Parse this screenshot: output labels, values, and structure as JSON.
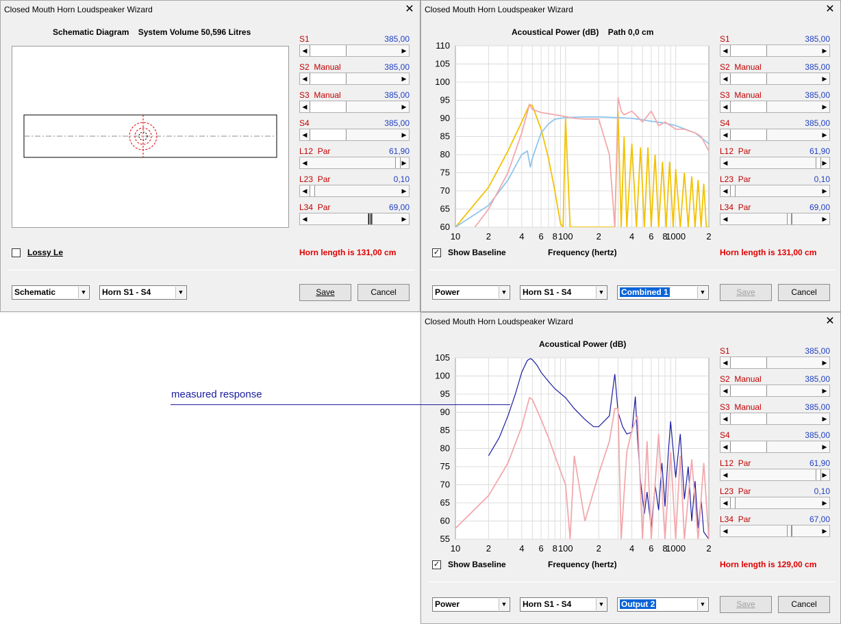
{
  "window_title": "Closed Mouth Horn Loudspeaker Wizard",
  "close_glyph": "✕",
  "sliders_ab": [
    {
      "label": "S1",
      "value": "385,00"
    },
    {
      "label": "S2  Manual",
      "value": "385,00"
    },
    {
      "label": "S3  Manual",
      "value": "385,00"
    },
    {
      "label": "S4",
      "value": "385,00"
    },
    {
      "label": "L12  Par",
      "value": "61,90"
    },
    {
      "label": "L23  Par",
      "value": "0,10"
    },
    {
      "label": "L34  Par",
      "value": "69,00"
    }
  ],
  "sliders_c": [
    {
      "label": "S1",
      "value": "385,00"
    },
    {
      "label": "S2  Manual",
      "value": "385,00"
    },
    {
      "label": "S3  Manual",
      "value": "385,00"
    },
    {
      "label": "S4",
      "value": "385,00"
    },
    {
      "label": "L12  Par",
      "value": "61,90"
    },
    {
      "label": "L23  Par",
      "value": "0,10"
    },
    {
      "label": "L34  Par",
      "value": "67,00"
    }
  ],
  "win_a": {
    "title": "Schematic Diagram    System Volume 50,596 Litres",
    "checkbox_label": "Lossy Le",
    "horn_length": "Horn length is 131,00 cm",
    "combo1": "Schematic",
    "combo2": "Horn S1 - S4",
    "save": "Save",
    "cancel": "Cancel"
  },
  "win_b": {
    "title": "Acoustical Power (dB)    Path 0,0 cm",
    "checkbox_label": "Show Baseline",
    "xlabel": "Frequency (hertz)",
    "horn_length": "Horn length is 131,00 cm",
    "combo1": "Power",
    "combo2": "Horn S1 - S4",
    "combo3": "Combined 1",
    "save": "Save",
    "cancel": "Cancel"
  },
  "win_c": {
    "title": "Acoustical Power (dB)",
    "checkbox_label": "Show Baseline",
    "xlabel": "Frequency (hertz)",
    "horn_length": "Horn length is 129,00 cm",
    "combo1": "Power",
    "combo2": "Horn S1 - S4",
    "combo3": "Output 2",
    "save": "Save",
    "cancel": "Cancel"
  },
  "annotation": "measured response",
  "colors": {
    "label_red": "#c00000",
    "value_blue": "#1f3fc0",
    "horn_length_red": "#e00000",
    "curve_yellow": "#f2c200",
    "curve_lightblue": "#8ec5ee",
    "curve_pink": "#f2a8ac",
    "curve_navy": "#1a1aa0",
    "selection_blue": "#0a64d8"
  },
  "chart_data": [
    {
      "type": "line",
      "title": "Acoustical Power (dB)    Path 0,0 cm",
      "xlabel": "Frequency (hertz)",
      "ylabel": "",
      "x_scale": "log",
      "x_ticks": [
        "10",
        "2",
        "4",
        "6",
        "8",
        "100",
        "2",
        "4",
        "6",
        "8",
        "1000",
        "2"
      ],
      "xlim": [
        10,
        2000
      ],
      "y_ticks": [
        60,
        65,
        70,
        75,
        80,
        85,
        90,
        95,
        100,
        105,
        110
      ],
      "ylim": [
        60,
        110
      ],
      "grid": true,
      "series": [
        {
          "color": "#f2c200",
          "x": [
            10,
            20,
            30,
            40,
            47,
            50,
            60,
            70,
            80,
            90,
            95,
            100,
            110,
            120,
            150,
            170,
            180,
            200,
            250,
            280,
            300,
            320,
            340,
            360,
            400,
            440,
            480,
            520,
            560,
            600,
            650,
            700,
            760,
            820,
            880,
            950,
            1000,
            1100,
            1200,
            1300,
            1400,
            1500,
            1600,
            1700,
            1800,
            1900,
            2000
          ],
          "y": [
            60,
            71,
            81,
            89,
            93.8,
            93.5,
            87,
            79,
            70,
            61,
            60,
            90,
            60,
            60,
            60,
            60,
            60,
            60,
            60,
            60,
            92,
            60,
            85,
            60,
            83,
            60,
            82,
            60,
            82,
            60,
            80,
            60,
            78,
            60,
            78,
            60,
            76,
            60,
            75,
            60,
            74,
            60,
            73,
            60,
            72,
            60,
            60
          ]
        },
        {
          "color": "#8ec5ee",
          "x": [
            10,
            20,
            30,
            40,
            45,
            48,
            50,
            60,
            70,
            80,
            100,
            150,
            200,
            250,
            300,
            400,
            500,
            600,
            800,
            1000,
            1500,
            2000
          ],
          "y": [
            60,
            66,
            73,
            80,
            81,
            76.5,
            79,
            86,
            88.5,
            89.8,
            90.2,
            90.4,
            90.4,
            90.3,
            90.2,
            90,
            89.6,
            89.2,
            88.7,
            88,
            86,
            83
          ]
        },
        {
          "color": "#f2a8ac",
          "x": [
            15,
            20,
            30,
            40,
            47,
            50,
            60,
            70,
            80,
            100,
            120,
            150,
            200,
            250,
            280,
            300,
            320,
            340,
            400,
            500,
            600,
            700,
            800,
            1000,
            1200,
            1500,
            1700,
            2000
          ],
          "y": [
            60,
            65,
            75,
            86,
            93.8,
            92.5,
            91.6,
            91.3,
            91,
            90.5,
            90,
            89.8,
            89.8,
            80,
            60,
            95.8,
            92,
            91,
            92,
            89,
            92,
            88,
            89,
            87,
            87,
            86,
            85,
            81
          ]
        }
      ]
    },
    {
      "type": "line",
      "title": "Acoustical Power (dB)",
      "xlabel": "Frequency (hertz)",
      "ylabel": "",
      "x_scale": "log",
      "x_ticks": [
        "10",
        "2",
        "4",
        "6",
        "8",
        "100",
        "2",
        "4",
        "6",
        "8",
        "1000",
        "2"
      ],
      "xlim": [
        10,
        2000
      ],
      "y_ticks": [
        55,
        60,
        65,
        70,
        75,
        80,
        85,
        90,
        95,
        100,
        105
      ],
      "ylim": [
        55,
        105
      ],
      "grid": true,
      "series": [
        {
          "color": "#1a1aa0",
          "x": [
            20,
            25,
            30,
            35,
            40,
            45,
            48,
            50,
            55,
            60,
            70,
            80,
            100,
            120,
            150,
            180,
            200,
            250,
            280,
            300,
            330,
            360,
            400,
            430,
            450,
            480,
            520,
            550,
            600,
            650,
            700,
            750,
            800,
            850,
            900,
            1000,
            1100,
            1200,
            1300,
            1400,
            1500,
            1600,
            1700,
            1800,
            2000
          ],
          "y": [
            78,
            83,
            89,
            95,
            101,
            104.3,
            104.8,
            104.5,
            103,
            101,
            98.5,
            96.5,
            94,
            91,
            88,
            86,
            86,
            89,
            100.5,
            90,
            86,
            84,
            84.5,
            94.3,
            83,
            71,
            62,
            68,
            58,
            70,
            63,
            76,
            64,
            77,
            87.5,
            72,
            84,
            66,
            75,
            60,
            71,
            58,
            66,
            57,
            55
          ]
        },
        {
          "color": "#f2a8ac",
          "x": [
            10,
            20,
            30,
            40,
            47,
            50,
            60,
            70,
            80,
            100,
            110,
            120,
            150,
            200,
            250,
            280,
            300,
            320,
            360,
            400,
            450,
            500,
            550,
            600,
            700,
            800,
            900,
            1000,
            1100,
            1200,
            1400,
            1600,
            1800,
            2000
          ],
          "y": [
            58,
            67,
            76,
            86,
            94,
            93.5,
            88,
            83,
            78,
            70,
            55,
            78,
            60,
            73,
            82,
            91,
            91,
            55,
            79,
            85,
            89,
            55,
            82,
            55,
            84,
            55,
            79,
            55,
            78,
            55,
            77,
            55,
            76,
            55
          ]
        }
      ]
    }
  ]
}
